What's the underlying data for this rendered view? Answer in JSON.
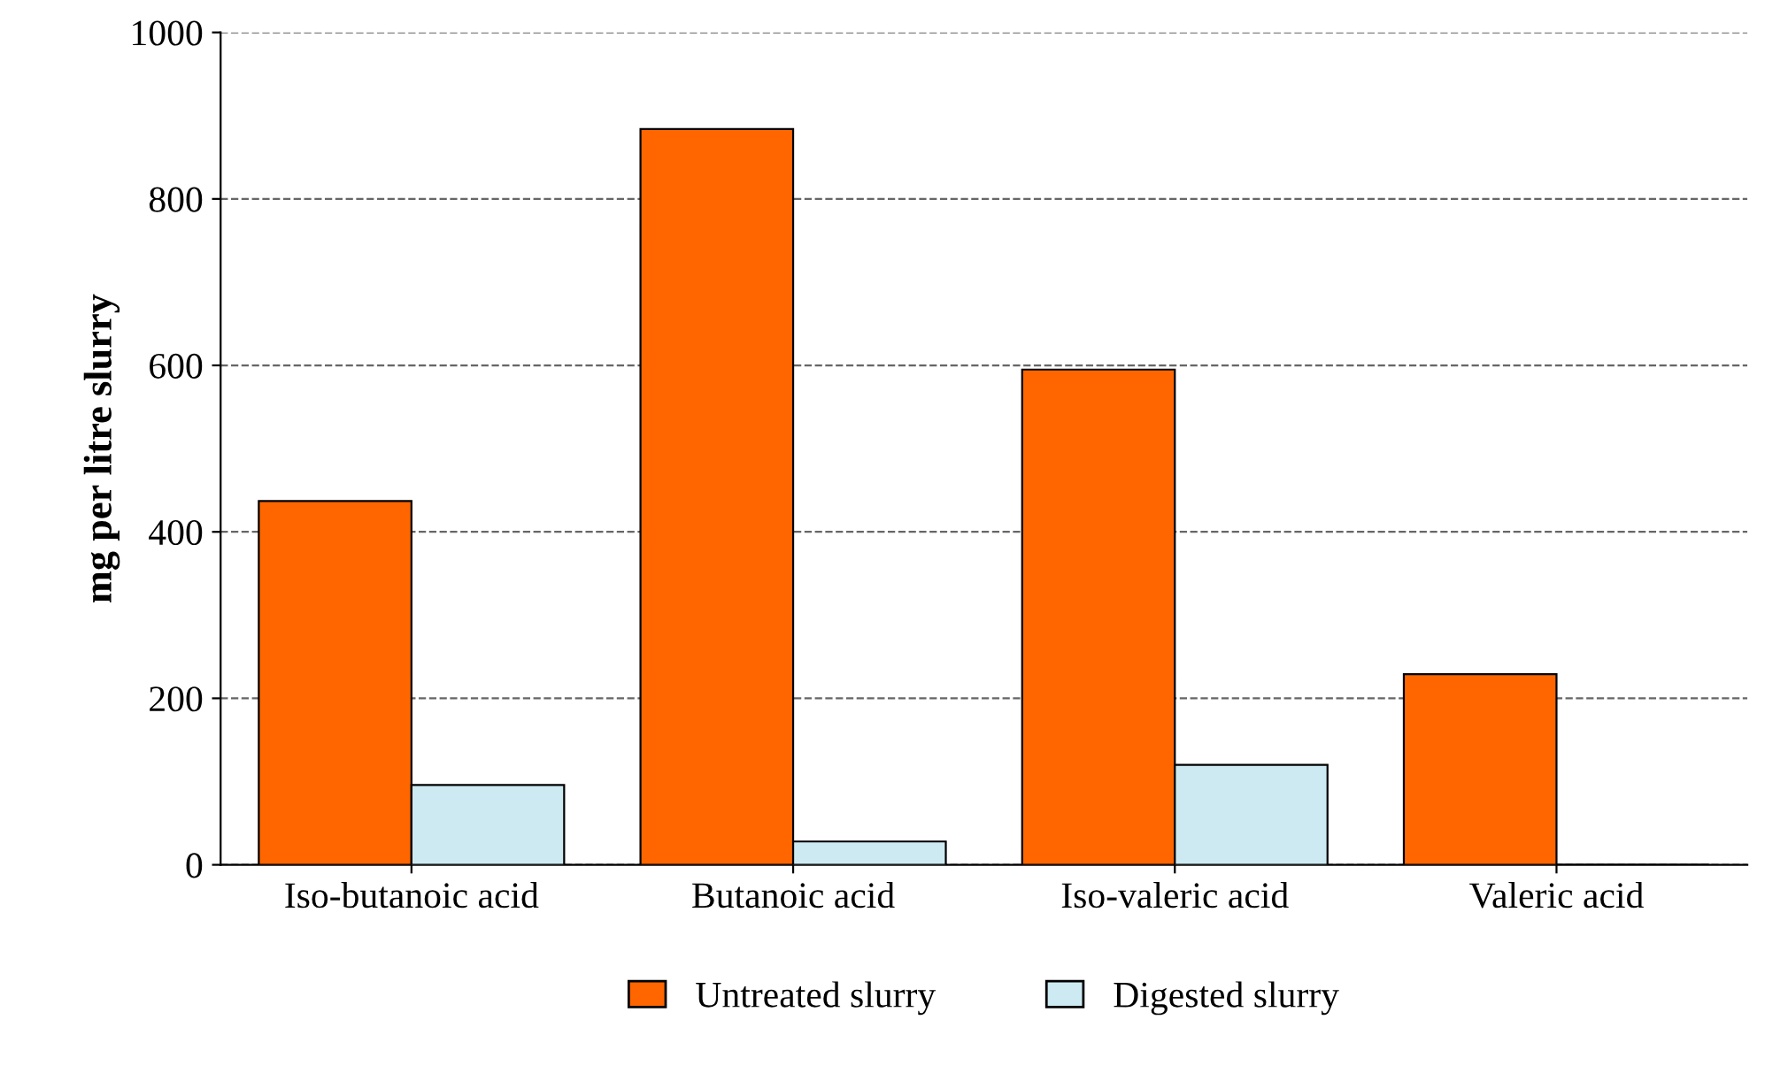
{
  "chart_data": {
    "type": "bar",
    "ylabel": "mg per litre slurry",
    "categories": [
      "Iso-butanoic acid",
      "Butanoic acid",
      "Iso-valeric acid",
      "Valeric acid"
    ],
    "series": [
      {
        "name": "Untreated slurry",
        "color": "#ff6600",
        "values": [
          437,
          884,
          595,
          229
        ]
      },
      {
        "name": "Digested slurry",
        "color": "#cdeaf2",
        "values": [
          96,
          28,
          120,
          0
        ]
      }
    ],
    "ylim": [
      0,
      1000
    ],
    "yticks": [
      0,
      200,
      400,
      600,
      800,
      1000
    ],
    "grid": "y",
    "legend": "bottom"
  }
}
